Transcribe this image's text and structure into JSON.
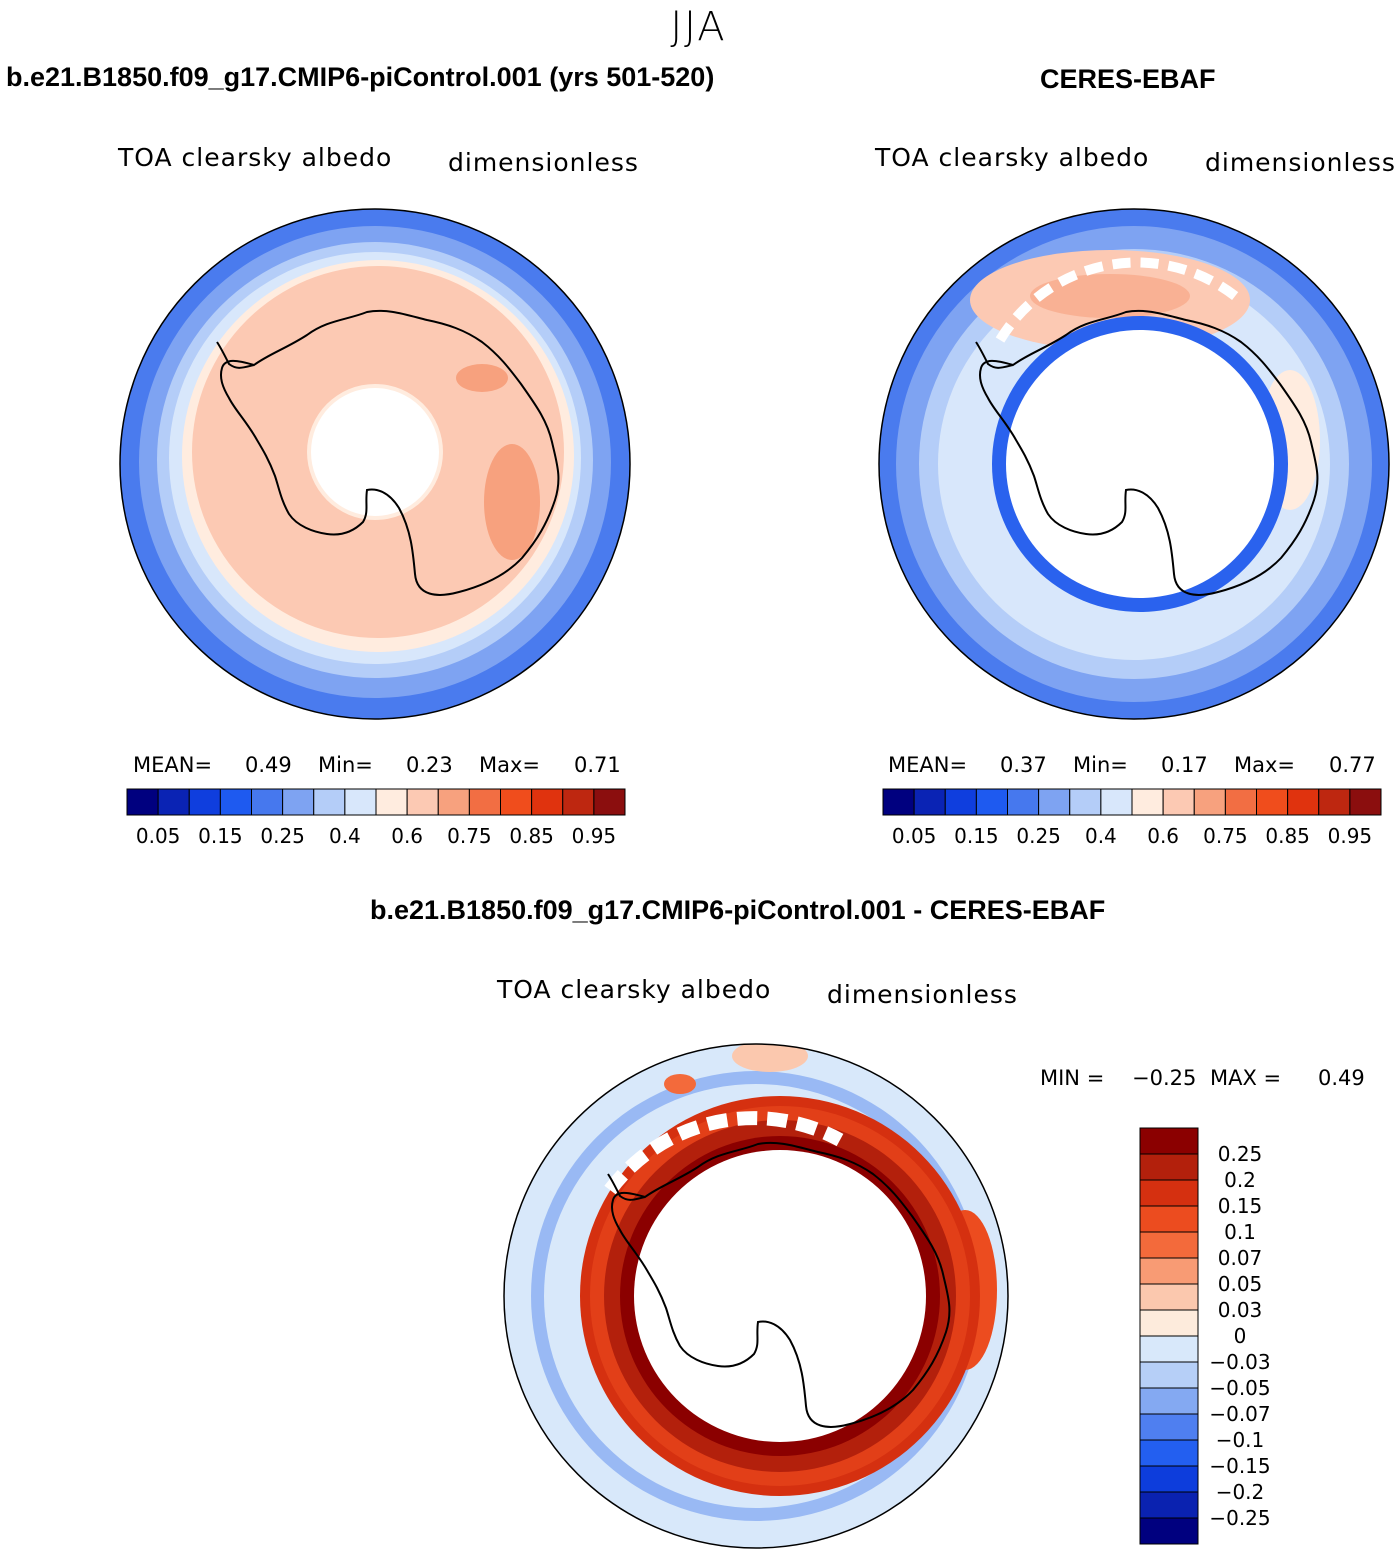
{
  "season": "JJA",
  "panels": [
    {
      "title": "b.e21.B1850.f09_g17.CMIP6-piControl.001 (yrs 501-520)",
      "variable": "TOA clearsky albedo",
      "units": "dimensionless",
      "stats": {
        "mean_label": "MEAN=",
        "mean": "0.49",
        "min_label": "Min=",
        "min": "0.23",
        "max_label": "Max=",
        "max": "0.71"
      }
    },
    {
      "title": "CERES-EBAF",
      "variable": "TOA clearsky albedo",
      "units": "dimensionless",
      "stats": {
        "mean_label": "MEAN=",
        "mean": "0.37",
        "min_label": "Min=",
        "min": "0.17",
        "max_label": "Max=",
        "max": "0.77"
      }
    }
  ],
  "diff_panel": {
    "title": "b.e21.B1850.f09_g17.CMIP6-piControl.001 - CERES-EBAF",
    "variable": "TOA clearsky albedo",
    "units": "dimensionless",
    "stats": {
      "min_label": "MIN =",
      "min": "−0.25",
      "max_label": "MAX =",
      "max": "0.49"
    }
  },
  "chart_data": [
    {
      "type": "heatmap",
      "projection": "south polar stereographic",
      "title": "b.e21.B1850.f09_g17.CMIP6-piControl.001 (yrs 501-520)",
      "variable": "TOA clearsky albedo",
      "units": "dimensionless",
      "mean": 0.49,
      "min": 0.23,
      "max": 0.71,
      "colorbar": {
        "orientation": "horizontal",
        "tick_labels": [
          "0.05",
          "0.15",
          "0.25",
          "0.4",
          "0.6",
          "0.75",
          "0.85",
          "0.95"
        ],
        "colors": [
          "#00007f",
          "#0a23b4",
          "#0f3ede",
          "#1e5af0",
          "#4678ee",
          "#7ea3f2",
          "#b4cdf8",
          "#d8e7fb",
          "#ffecdf",
          "#fcc9b3",
          "#f7a17e",
          "#f26e43",
          "#f04d1c",
          "#e0330e",
          "#be2710",
          "#8b0e0e"
        ]
      }
    },
    {
      "type": "heatmap",
      "projection": "south polar stereographic",
      "title": "CERES-EBAF",
      "variable": "TOA clearsky albedo",
      "units": "dimensionless",
      "mean": 0.37,
      "min": 0.17,
      "max": 0.77,
      "colorbar": {
        "orientation": "horizontal",
        "tick_labels": [
          "0.05",
          "0.15",
          "0.25",
          "0.4",
          "0.6",
          "0.75",
          "0.85",
          "0.95"
        ],
        "colors": [
          "#00007f",
          "#0a23b4",
          "#0f3ede",
          "#1e5af0",
          "#4678ee",
          "#7ea3f2",
          "#b4cdf8",
          "#d8e7fb",
          "#ffecdf",
          "#fcc9b3",
          "#f7a17e",
          "#f26e43",
          "#f04d1c",
          "#e0330e",
          "#be2710",
          "#8b0e0e"
        ]
      }
    },
    {
      "type": "heatmap",
      "projection": "south polar stereographic",
      "title": "b.e21.B1850.f09_g17.CMIP6-piControl.001 - CERES-EBAF",
      "variable": "TOA clearsky albedo",
      "units": "dimensionless",
      "min": -0.25,
      "max": 0.49,
      "colorbar": {
        "orientation": "vertical",
        "tick_labels": [
          "0.25",
          "0.2",
          "0.15",
          "0.1",
          "0.07",
          "0.05",
          "0.03",
          "0",
          "−0.03",
          "−0.05",
          "−0.07",
          "−0.1",
          "−0.15",
          "−0.2",
          "−0.25"
        ],
        "colors": [
          "#8b0000",
          "#b3200c",
          "#d53010",
          "#ec4c1f",
          "#f36a3b",
          "#f89b74",
          "#fbc8ae",
          "#fdebdc",
          "#d8e8fa",
          "#b6cff7",
          "#84a9f2",
          "#4f7ff0",
          "#235ff0",
          "#0d3ddc",
          "#0a22b0",
          "#00007f"
        ]
      }
    }
  ]
}
